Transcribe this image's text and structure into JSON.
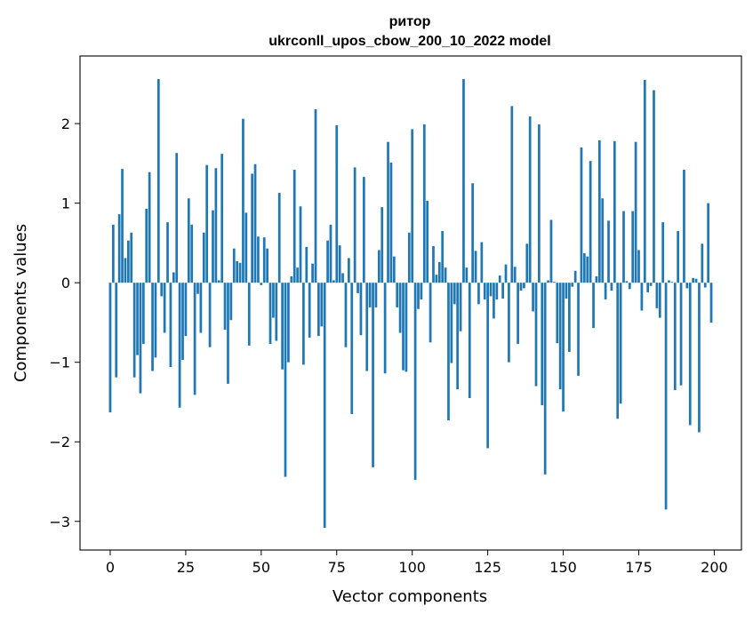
{
  "chart_data": {
    "type": "bar",
    "title": "ритор",
    "subtitle": "ukrconll_upos_cbow_200_10_2022 model",
    "xlabel": "Vector components",
    "ylabel": "Components values",
    "xlim": [
      -10,
      209
    ],
    "ylim": [
      -3.36,
      2.85
    ],
    "xticks": [
      0,
      25,
      50,
      75,
      100,
      125,
      150,
      175,
      200
    ],
    "yticks": [
      -3,
      -2,
      -1,
      0,
      1,
      2
    ],
    "bar_color": "#1f77b4",
    "grid": false,
    "legend": "none",
    "x": [
      0,
      1,
      2,
      3,
      4,
      5,
      6,
      7,
      8,
      9,
      10,
      11,
      12,
      13,
      14,
      15,
      16,
      17,
      18,
      19,
      20,
      21,
      22,
      23,
      24,
      25,
      26,
      27,
      28,
      29,
      30,
      31,
      32,
      33,
      34,
      35,
      36,
      37,
      38,
      39,
      40,
      41,
      42,
      43,
      44,
      45,
      46,
      47,
      48,
      49,
      50,
      51,
      52,
      53,
      54,
      55,
      56,
      57,
      58,
      59,
      60,
      61,
      62,
      63,
      64,
      65,
      66,
      67,
      68,
      69,
      70,
      71,
      72,
      73,
      74,
      75,
      76,
      77,
      78,
      79,
      80,
      81,
      82,
      83,
      84,
      85,
      86,
      87,
      88,
      89,
      90,
      91,
      92,
      93,
      94,
      95,
      96,
      97,
      98,
      99,
      100,
      101,
      102,
      103,
      104,
      105,
      106,
      107,
      108,
      109,
      110,
      111,
      112,
      113,
      114,
      115,
      116,
      117,
      118,
      119,
      120,
      121,
      122,
      123,
      124,
      125,
      126,
      127,
      128,
      129,
      130,
      131,
      132,
      133,
      134,
      135,
      136,
      137,
      138,
      139,
      140,
      141,
      142,
      143,
      144,
      145,
      146,
      147,
      148,
      149,
      150,
      151,
      152,
      153,
      154,
      155,
      156,
      157,
      158,
      159,
      160,
      161,
      162,
      163,
      164,
      165,
      166,
      167,
      168,
      169,
      170,
      171,
      172,
      173,
      174,
      175,
      176,
      177,
      178,
      179,
      180,
      181,
      182,
      183,
      184,
      185,
      186,
      187,
      188,
      189,
      190,
      191,
      192,
      193,
      194,
      195,
      196,
      197,
      198,
      199
    ],
    "values": [
      -1.63,
      0.73,
      -1.19,
      0.86,
      1.43,
      0.31,
      0.53,
      0.63,
      -1.19,
      -0.91,
      -1.39,
      -0.77,
      0.93,
      1.39,
      -1.11,
      -0.94,
      2.56,
      -0.17,
      -0.63,
      0.76,
      -1.06,
      0.13,
      1.63,
      -1.57,
      -0.97,
      -0.67,
      1.06,
      0.73,
      -1.41,
      -0.14,
      -0.63,
      0.63,
      1.48,
      -0.81,
      0.91,
      1.44,
      0.03,
      1.62,
      -0.59,
      -1.27,
      -0.47,
      0.43,
      0.27,
      0.25,
      2.06,
      0.88,
      -0.79,
      1.37,
      1.49,
      0.58,
      -0.03,
      0.57,
      0.43,
      -0.77,
      -0.44,
      -0.73,
      1.13,
      -1.09,
      -2.44,
      -1.0,
      0.08,
      1.42,
      0.19,
      0.96,
      -1.03,
      0.45,
      -0.69,
      0.24,
      2.18,
      -0.67,
      -0.55,
      -3.08,
      0.53,
      0.73,
      0.03,
      1.98,
      0.47,
      0.12,
      -0.81,
      0.31,
      -1.65,
      1.45,
      -0.13,
      -0.66,
      1.33,
      -1.11,
      -0.31,
      -2.32,
      -0.31,
      0.41,
      0.95,
      -1.14,
      1.77,
      1.51,
      0.33,
      -0.31,
      -0.63,
      -1.1,
      -1.12,
      0.63,
      1.93,
      -2.48,
      -0.33,
      -0.21,
      1.99,
      1.03,
      -0.75,
      0.46,
      0.1,
      0.26,
      0.65,
      0.19,
      -1.73,
      -1.01,
      -0.27,
      -1.34,
      -0.61,
      2.56,
      0.19,
      -1.45,
      1.25,
      0.4,
      -0.27,
      0.51,
      -0.21,
      -2.08,
      -0.17,
      -0.45,
      -0.21,
      0.09,
      -0.2,
      0.23,
      -1.0,
      2.22,
      0.2,
      -0.77,
      -0.1,
      -0.07,
      0.49,
      2.09,
      -0.36,
      -1.3,
      1.99,
      -1.54,
      -2.41,
      0.03,
      0.79,
      0.01,
      -0.76,
      -1.34,
      -1.62,
      -0.2,
      -0.87,
      -0.05,
      0.15,
      -1.17,
      1.7,
      0.37,
      0.33,
      1.53,
      -0.57,
      0.08,
      1.79,
      1.06,
      -0.21,
      0.78,
      -0.1,
      1.78,
      -1.71,
      -1.52,
      0.9,
      0.02,
      -0.08,
      0.9,
      1.77,
      0.41,
      -0.35,
      2.55,
      -0.12,
      -0.04,
      2.42,
      -0.32,
      -0.44,
      0.76,
      -2.85,
      0.03,
      0.01,
      -1.35,
      0.65,
      -1.29,
      1.42,
      -0.07,
      -1.79,
      0.06,
      0.05,
      -1.88,
      0.49,
      -0.06,
      1.0,
      -0.5
    ]
  }
}
